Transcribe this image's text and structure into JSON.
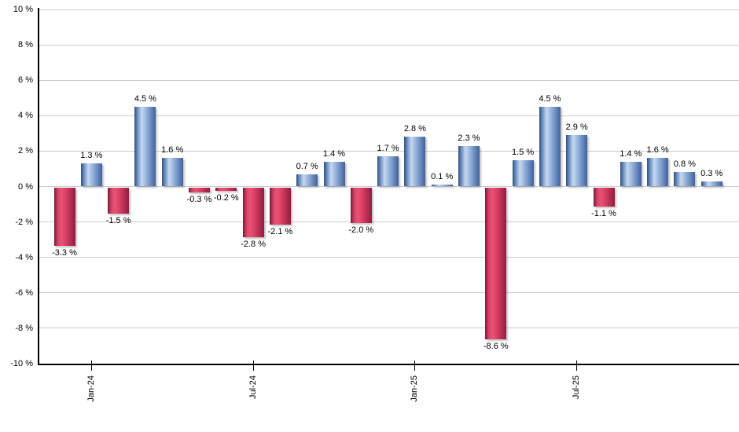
{
  "chart_data": {
    "type": "bar",
    "title": "",
    "xlabel": "",
    "ylabel": "",
    "unit": "%",
    "values": [
      -3.3,
      1.3,
      -1.5,
      4.5,
      1.6,
      -0.3,
      -0.2,
      -2.8,
      -2.1,
      0.7,
      1.4,
      -2.0,
      1.7,
      2.8,
      0.1,
      2.3,
      -8.6,
      1.5,
      4.5,
      2.9,
      -1.1,
      1.4,
      1.6,
      0.8,
      0.3
    ],
    "bar_labels": [
      "-3.3 %",
      "1.3 %",
      "-1.5 %",
      "4.5 %",
      "1.6 %",
      "-0.3 %",
      "-0.2 %",
      "-2.8 %",
      "-2.1 %",
      "0.7 %",
      "1.4 %",
      "-2.0 %",
      "1.7 %",
      "2.8 %",
      "0.1 %",
      "2.3 %",
      "-8.6 %",
      "1.5 %",
      "4.5 %",
      "2.9 %",
      "-1.1 %",
      "1.4 %",
      "1.6 %",
      "0.8 %",
      "0.3 %"
    ],
    "ylim": [
      -10,
      10
    ],
    "y_ticks": [
      {
        "value": 10,
        "label": "10 %"
      },
      {
        "value": 8,
        "label": "8 %"
      },
      {
        "value": 6,
        "label": "6 %"
      },
      {
        "value": 4,
        "label": "4 %"
      },
      {
        "value": 2,
        "label": "2 %"
      },
      {
        "value": 0,
        "label": "0 %"
      },
      {
        "value": -2,
        "label": "-2 %"
      },
      {
        "value": -4,
        "label": "-4 %"
      },
      {
        "value": -6,
        "label": "-6 %"
      },
      {
        "value": -8,
        "label": "-8 %"
      },
      {
        "value": -10,
        "label": "-10 %"
      }
    ],
    "x_ticks": [
      {
        "index": 1,
        "label": "Jan-24"
      },
      {
        "index": 7,
        "label": "Jul-24"
      },
      {
        "index": 13,
        "label": "Jan-25"
      },
      {
        "index": 19,
        "label": "Jul-25"
      }
    ],
    "grid": true,
    "legend": false,
    "colors": {
      "positive_bar_edge": "#30507f",
      "positive_bar_light": "#c5d8f1",
      "positive_bar_mid": "#6d8fc2",
      "negative_bar_edge": "#7d1634",
      "negative_bar_light": "#ea5273",
      "negative_bar_mid": "#bb2f55",
      "gridline": "#cccccc",
      "axis": "#000000",
      "text": "#000000",
      "background": "#ffffff"
    }
  }
}
